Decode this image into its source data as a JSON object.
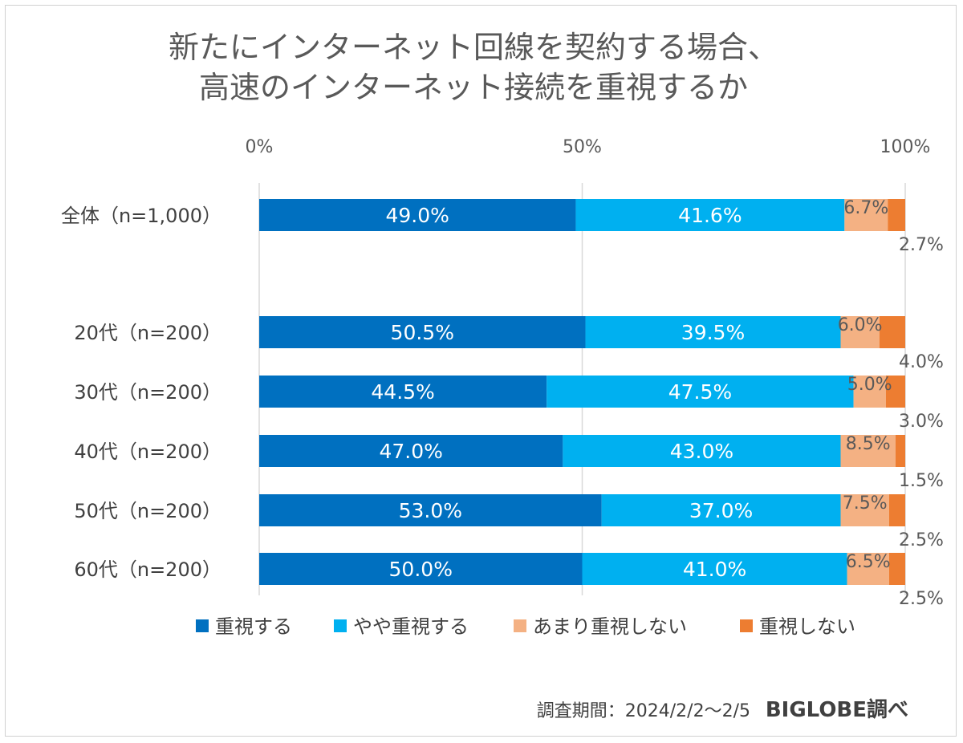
{
  "chart_data": {
    "type": "bar",
    "orientation": "horizontal",
    "stacked": true,
    "title_lines": [
      "新たにインターネット回線を契約する場合、",
      "高速のインターネット接続を重視するか"
    ],
    "axis_ticks": [
      "0%",
      "50%",
      "100%"
    ],
    "xlim": [
      0,
      100
    ],
    "categories": [
      "全体（n=1,000）",
      "20代（n=200）",
      "30代（n=200）",
      "40代（n=200）",
      "50代（n=200）",
      "60代（n=200）"
    ],
    "series": [
      {
        "name": "重視する",
        "color": "#0070C0",
        "values": [
          49.0,
          50.5,
          44.5,
          47.0,
          53.0,
          50.0
        ],
        "labels": [
          "49.0%",
          "50.5%",
          "44.5%",
          "47.0%",
          "53.0%",
          "50.0%"
        ]
      },
      {
        "name": "やや重視する",
        "color": "#00B0F0",
        "values": [
          41.6,
          39.5,
          47.5,
          43.0,
          37.0,
          41.0
        ],
        "labels": [
          "41.6%",
          "39.5%",
          "47.5%",
          "43.0%",
          "37.0%",
          "41.0%"
        ]
      },
      {
        "name": "あまり重視しない",
        "color": "#F4B183",
        "values": [
          6.7,
          6.0,
          5.0,
          8.5,
          7.5,
          6.5
        ],
        "labels": [
          "6.7%",
          "6.0%",
          "5.0%",
          "8.5%",
          "7.5%",
          "6.5%"
        ]
      },
      {
        "name": "重視しない",
        "color": "#ED7D31",
        "values": [
          2.7,
          4.0,
          3.0,
          1.5,
          2.5,
          2.5
        ],
        "labels": [
          "2.7%",
          "4.0%",
          "3.0%",
          "1.5%",
          "2.5%",
          "2.5%"
        ]
      }
    ],
    "grid": true,
    "legend_position": "bottom"
  },
  "footer": {
    "period": "調査期間：2024/2/2～2/5",
    "brand": "BIGLOBE調べ"
  }
}
